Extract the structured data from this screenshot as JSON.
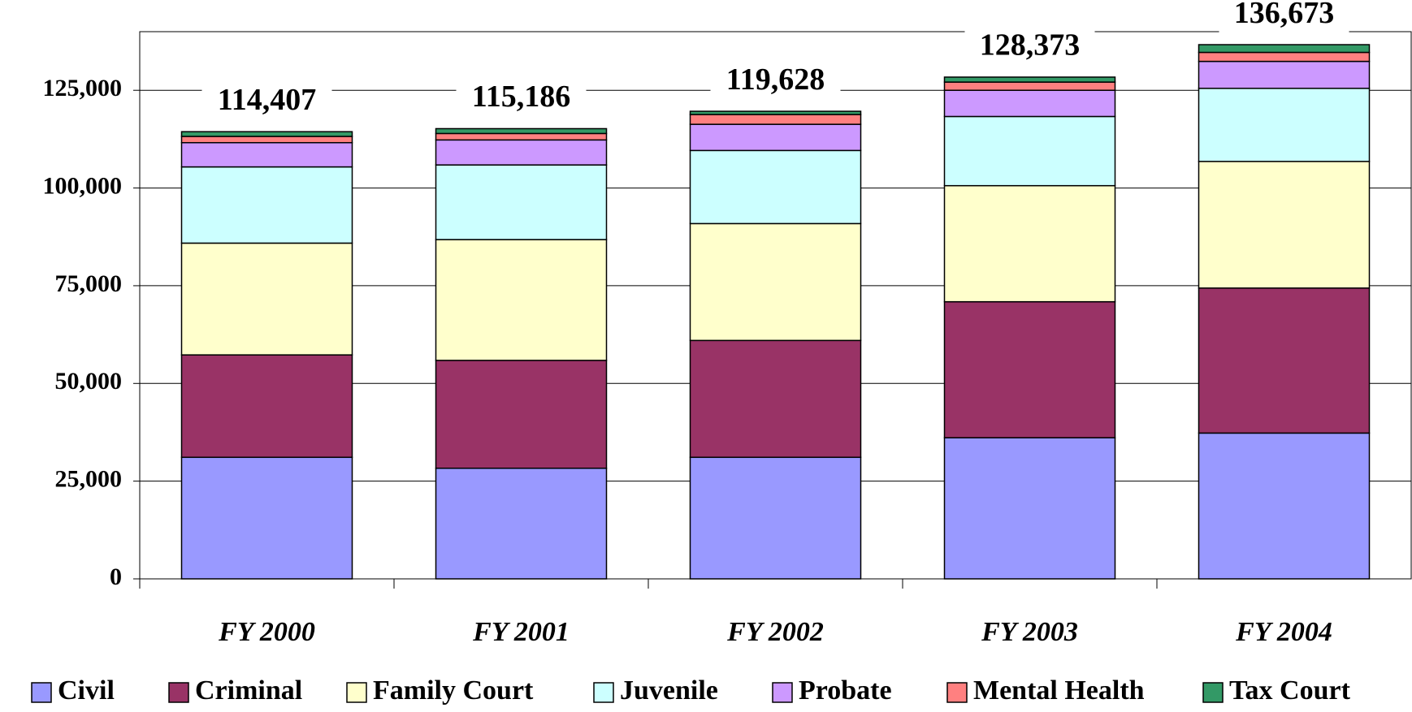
{
  "chart_data": {
    "type": "stacked_bar",
    "categories": [
      "FY 2000",
      "FY 2001",
      "FY 2002",
      "FY 2003",
      "FY 2004"
    ],
    "series": [
      {
        "name": "Civil",
        "color": "#9999ff",
        "values": [
          31100,
          28300,
          31100,
          36100,
          37300
        ]
      },
      {
        "name": "Criminal",
        "color": "#993366",
        "values": [
          26200,
          27600,
          29900,
          34800,
          37100
        ]
      },
      {
        "name": "Family Court",
        "color": "#ffffcc",
        "values": [
          28600,
          30900,
          29900,
          29700,
          32400
        ]
      },
      {
        "name": "Juvenile",
        "color": "#ccffff",
        "values": [
          19500,
          19100,
          18700,
          17700,
          18700
        ]
      },
      {
        "name": "Probate",
        "color": "#cc99ff",
        "values": [
          6200,
          6400,
          6700,
          6700,
          6900
        ]
      },
      {
        "name": "Mental Health",
        "color": "#ff8080",
        "values": [
          1600,
          1650,
          2500,
          2100,
          2300
        ]
      },
      {
        "name": "Tax Court",
        "color": "#339966",
        "values": [
          1207,
          1236,
          828,
          1273,
          1973
        ]
      }
    ],
    "totals": [
      114407,
      115186,
      119628,
      128373,
      136673
    ],
    "total_labels": [
      "114,407",
      "115,186",
      "119,628",
      "128,373",
      "136,673"
    ],
    "ylim": [
      0,
      140000
    ],
    "yticks": [
      0,
      {
        "value": 25000,
        "label": "25,000"
      },
      {
        "value": 50000,
        "label": "50,000"
      },
      {
        "value": 75000,
        "label": "75,000"
      },
      {
        "value": 100000,
        "label": "100,000"
      },
      {
        "value": 125000,
        "label": "125,000"
      }
    ],
    "grid": true,
    "legend": "bottom"
  }
}
